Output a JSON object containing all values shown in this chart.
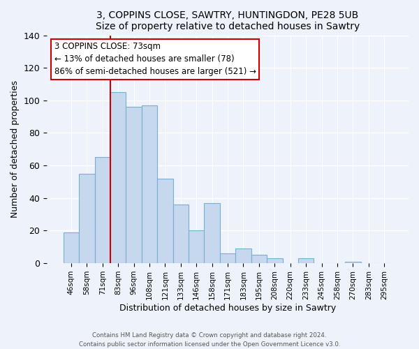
{
  "title1": "3, COPPINS CLOSE, SAWTRY, HUNTINGDON, PE28 5UB",
  "title2": "Size of property relative to detached houses in Sawtry",
  "xlabel": "Distribution of detached houses by size in Sawtry",
  "ylabel": "Number of detached properties",
  "bar_color": "#c5d8ee",
  "bar_edge_color": "#7aafd4",
  "categories": [
    "46sqm",
    "58sqm",
    "71sqm",
    "83sqm",
    "96sqm",
    "108sqm",
    "121sqm",
    "133sqm",
    "146sqm",
    "158sqm",
    "171sqm",
    "183sqm",
    "195sqm",
    "208sqm",
    "220sqm",
    "233sqm",
    "245sqm",
    "258sqm",
    "270sqm",
    "283sqm",
    "295sqm"
  ],
  "values": [
    19,
    55,
    65,
    105,
    96,
    97,
    52,
    36,
    20,
    37,
    6,
    9,
    5,
    3,
    0,
    3,
    0,
    0,
    1,
    0,
    0
  ],
  "ylim": [
    0,
    140
  ],
  "yticks": [
    0,
    20,
    40,
    60,
    80,
    100,
    120,
    140
  ],
  "vline_color": "#cc0000",
  "vline_index": 2.5,
  "annotation_title": "3 COPPINS CLOSE: 73sqm",
  "annotation_line1": "← 13% of detached houses are smaller (78)",
  "annotation_line2": "86% of semi-detached houses are larger (521) →",
  "footer1": "Contains HM Land Registry data © Crown copyright and database right 2024.",
  "footer2": "Contains public sector information licensed under the Open Government Licence v3.0.",
  "background_color": "#eef2fb"
}
